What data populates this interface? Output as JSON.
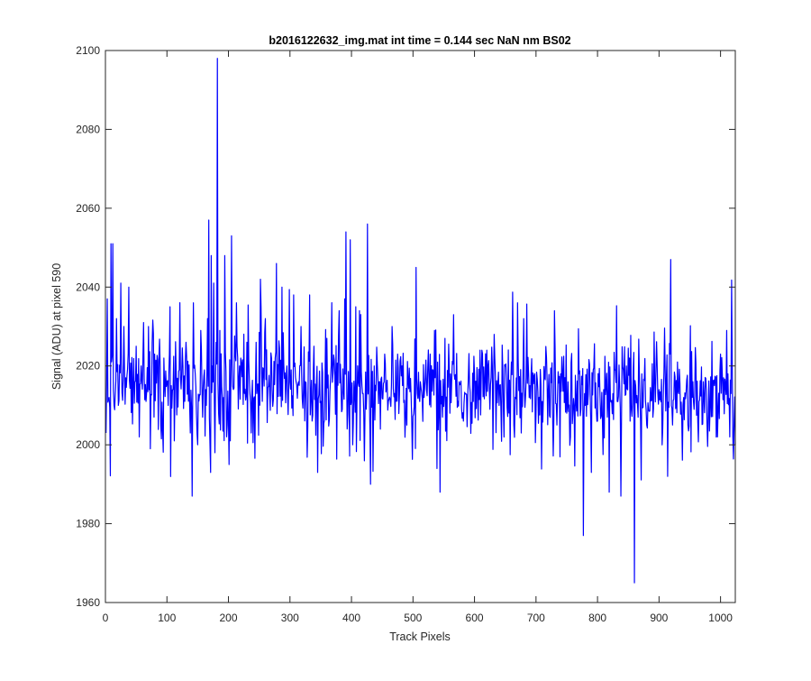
{
  "chart_data": {
    "type": "line",
    "title": "b2016122632_img.mat int time = 0.144 sec  NaN nm BS02",
    "xlabel": "Track Pixels",
    "ylabel": "Signal (ADU) at pixel 590",
    "xlim": [
      0,
      1024
    ],
    "ylim": [
      1960,
      2100
    ],
    "xticks": [
      0,
      100,
      200,
      300,
      400,
      500,
      600,
      700,
      800,
      900,
      1000
    ],
    "yticks": [
      1960,
      1980,
      2000,
      2020,
      2040,
      2060,
      2080,
      2100
    ],
    "grid": false,
    "legend": "none",
    "colors": {
      "series": "#0000ff",
      "axes": "#262626",
      "background": "#ffffff"
    },
    "series": [
      {
        "n_points": 1024,
        "x_start": 1,
        "x_step": 1,
        "baseline": 2015,
        "noise_amplitude": 6,
        "trend_end": 2013,
        "points": [
          [
            1,
            2003
          ],
          [
            3,
            2037
          ],
          [
            6,
            2012
          ],
          [
            9,
            2051
          ],
          [
            12,
            2051
          ],
          [
            14,
            2010
          ],
          [
            18,
            2032
          ],
          [
            21,
            2010
          ],
          [
            25,
            2041
          ],
          [
            30,
            2030
          ],
          [
            33,
            2017
          ],
          [
            38,
            2040
          ],
          [
            45,
            2016
          ],
          [
            50,
            2025
          ],
          [
            55,
            2002
          ],
          [
            58,
            2020
          ],
          [
            62,
            2031
          ],
          [
            66,
            2011
          ],
          [
            70,
            2030
          ],
          [
            73,
            1999
          ],
          [
            76,
            2026
          ],
          [
            80,
            2023
          ],
          [
            90,
            2005
          ],
          [
            95,
            2022
          ],
          [
            102,
            2010
          ],
          [
            105,
            2035
          ],
          [
            112,
            2001
          ],
          [
            120,
            2019
          ],
          [
            126,
            2020
          ],
          [
            131,
            2026
          ],
          [
            138,
            2003
          ],
          [
            141,
            1987
          ],
          [
            143,
            2036
          ],
          [
            150,
            2000
          ],
          [
            155,
            2029
          ],
          [
            158,
            2007
          ],
          [
            161,
            2019
          ],
          [
            164,
            2010
          ],
          [
            166,
            2032
          ],
          [
            168,
            2057
          ],
          [
            170,
            2000
          ],
          [
            172,
            2048
          ],
          [
            174,
            2020
          ],
          [
            176,
            2041
          ],
          [
            178,
            1998
          ],
          [
            180,
            2026
          ],
          [
            182,
            2098
          ],
          [
            184,
            2008
          ],
          [
            186,
            2029
          ],
          [
            190,
            2012
          ],
          [
            194,
            2048
          ],
          [
            198,
            2005
          ],
          [
            201,
            1995
          ],
          [
            205,
            2053
          ],
          [
            208,
            2014
          ],
          [
            213,
            2036
          ],
          [
            220,
            2022
          ],
          [
            230,
            2026
          ],
          [
            237,
            2003
          ],
          [
            245,
            2026
          ],
          [
            252,
            2042
          ],
          [
            260,
            2032
          ],
          [
            270,
            2022
          ],
          [
            278,
            2046
          ],
          [
            287,
            2040
          ],
          [
            295,
            2020
          ],
          [
            302,
            2019
          ],
          [
            306,
            2038
          ],
          [
            314,
            2016
          ],
          [
            318,
            2030
          ],
          [
            325,
            2016
          ],
          [
            332,
            2038
          ],
          [
            339,
            2025
          ],
          [
            345,
            1993
          ],
          [
            350,
            2011
          ],
          [
            360,
            2027
          ],
          [
            370,
            2018
          ],
          [
            380,
            2034
          ],
          [
            385,
            2009
          ],
          [
            389,
            2037
          ],
          [
            391,
            2054
          ],
          [
            393,
            2004
          ],
          [
            398,
            2052
          ],
          [
            402,
            2000
          ],
          [
            407,
            2035
          ],
          [
            413,
            2034
          ],
          [
            420,
            2008
          ],
          [
            426,
            2056
          ],
          [
            431,
            1990
          ],
          [
            437,
            2020
          ],
          [
            445,
            2016
          ],
          [
            454,
            2023
          ],
          [
            460,
            2011
          ],
          [
            466,
            2030
          ],
          [
            475,
            2023
          ],
          [
            482,
            2020
          ],
          [
            490,
            2005
          ],
          [
            498,
            2006
          ],
          [
            505,
            2045
          ],
          [
            512,
            2016
          ],
          [
            520,
            2017
          ],
          [
            528,
            2023
          ],
          [
            535,
            2029
          ],
          [
            539,
            1994
          ],
          [
            544,
            1988
          ],
          [
            548,
            2007
          ],
          [
            552,
            2027
          ],
          [
            560,
            2008
          ],
          [
            566,
            2033
          ],
          [
            575,
            2016
          ],
          [
            582,
            2006
          ],
          [
            590,
            2017
          ],
          [
            598,
            2011
          ],
          [
            605,
            2014
          ],
          [
            612,
            2024
          ],
          [
            620,
            2024
          ],
          [
            632,
            2028
          ],
          [
            640,
            2010
          ],
          [
            650,
            2020
          ],
          [
            660,
            2021
          ],
          [
            670,
            2036
          ],
          [
            676,
            2003
          ],
          [
            680,
            2032
          ],
          [
            690,
            2015
          ],
          [
            700,
            2008
          ],
          [
            710,
            2011
          ],
          [
            720,
            2014
          ],
          [
            730,
            2034
          ],
          [
            740,
            2018
          ],
          [
            750,
            2008
          ],
          [
            760,
            2008
          ],
          [
            770,
            2018
          ],
          [
            777,
            1977
          ],
          [
            780,
            2010
          ],
          [
            790,
            1993
          ],
          [
            800,
            2006
          ],
          [
            810,
            2014
          ],
          [
            816,
            2007
          ],
          [
            819,
            1988
          ],
          [
            825,
            2013
          ],
          [
            832,
            2011
          ],
          [
            838,
            1987
          ],
          [
            847,
            2020
          ],
          [
            853,
            2006
          ],
          [
            860,
            1965
          ],
          [
            866,
            2007
          ],
          [
            872,
            2018
          ],
          [
            880,
            2005
          ],
          [
            890,
            2007
          ],
          [
            900,
            2014
          ],
          [
            906,
            2004
          ],
          [
            914,
            1992
          ],
          [
            919,
            2047
          ],
          [
            922,
            2005
          ],
          [
            930,
            2021
          ],
          [
            940,
            2012
          ],
          [
            947,
            2005
          ],
          [
            955,
            2016
          ],
          [
            965,
            2011
          ],
          [
            972,
            2016
          ],
          [
            980,
            2007
          ],
          [
            990,
            2015
          ],
          [
            995,
            2002
          ],
          [
            1000,
            2023
          ],
          [
            1005,
            2017
          ],
          [
            1010,
            2029
          ],
          [
            1012,
            2018
          ],
          [
            1015,
            2002
          ],
          [
            1017,
            2013
          ],
          [
            1020,
            2002
          ],
          [
            1022,
            2006
          ],
          [
            1024,
            2000
          ]
        ]
      }
    ]
  }
}
